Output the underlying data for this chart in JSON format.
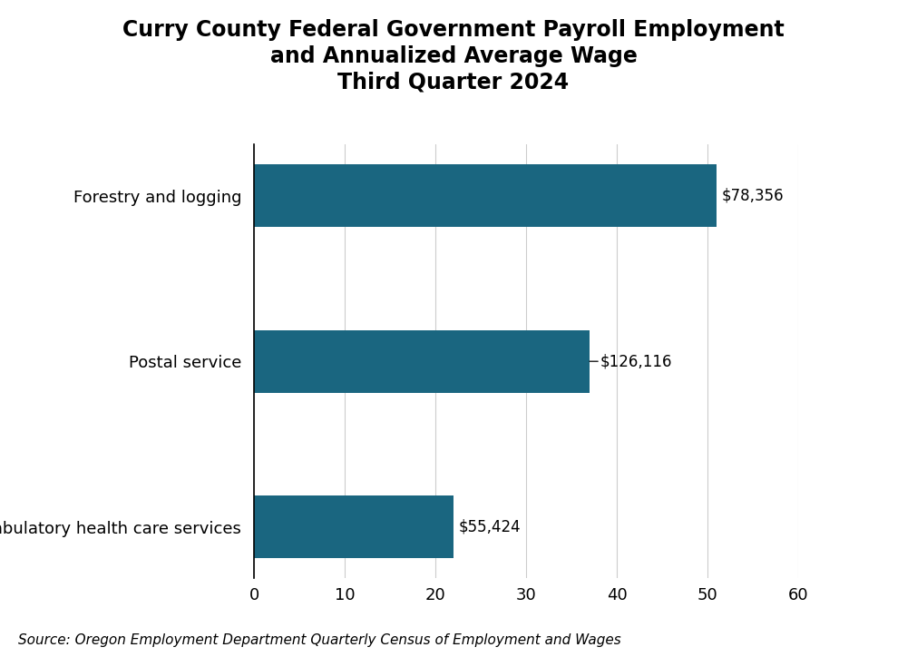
{
  "title_line1": "Curry County Federal Government Payroll Employment",
  "title_line2": "and Annualized Average Wage",
  "title_line3": "Third Quarter 2024",
  "categories": [
    "Ambulatory health care services",
    "Postal service",
    "Forestry and logging"
  ],
  "values": [
    22,
    37,
    51
  ],
  "wages": [
    "$55,424",
    "$126,116",
    "$78,356"
  ],
  "bar_color": "#1a6680",
  "xlim": [
    0,
    60
  ],
  "xticks": [
    0,
    10,
    20,
    30,
    40,
    50,
    60
  ],
  "source": "Source: Oregon Employment Department Quarterly Census of Employment and Wages",
  "background_color": "#ffffff",
  "title_fontsize": 17,
  "label_fontsize": 13,
  "tick_fontsize": 13,
  "source_fontsize": 11,
  "annotation_fontsize": 12,
  "bar_height": 0.38
}
